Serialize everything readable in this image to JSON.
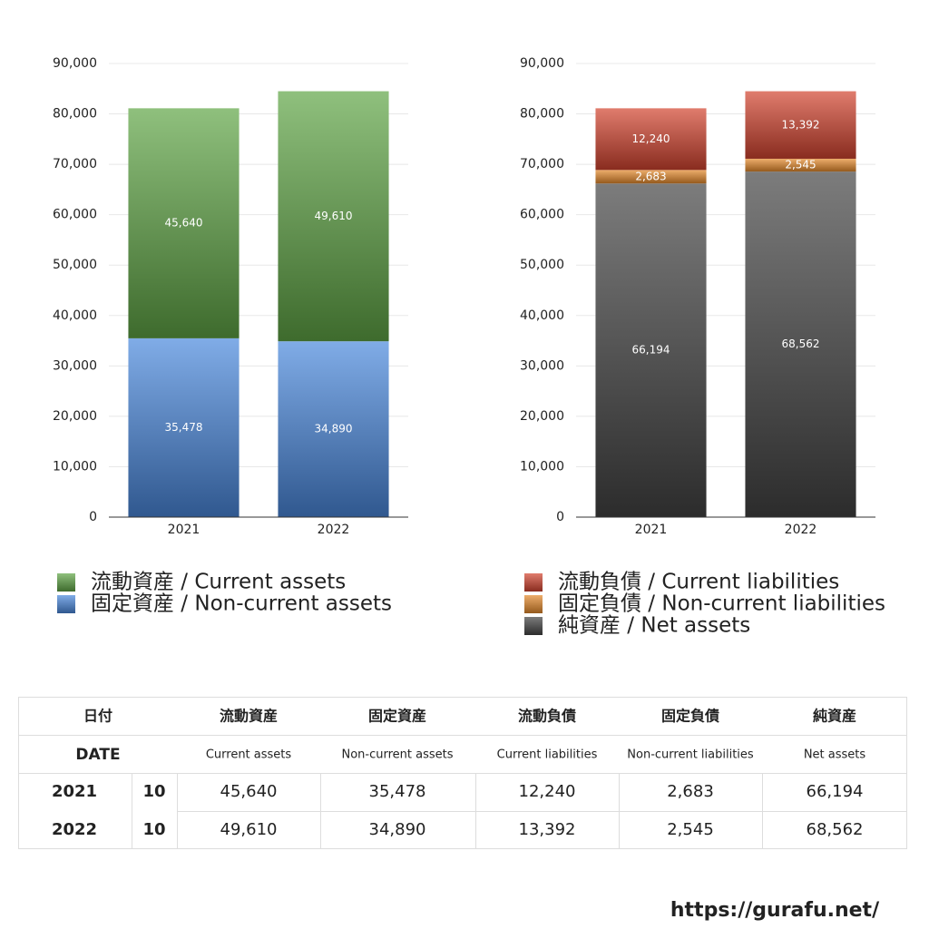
{
  "chart_data": [
    {
      "type": "bar",
      "stacked": true,
      "categories": [
        "2021",
        "2022"
      ],
      "series": [
        {
          "name": "流動資産 / Current assets",
          "color": "#5fa545",
          "values": [
            45640,
            49610
          ],
          "value_labels": [
            "45,640",
            "49,610"
          ]
        },
        {
          "name": "固定資産 / Non-current assets",
          "color": "#4a88dc",
          "values": [
            35478,
            34890
          ],
          "value_labels": [
            "35,478",
            "34,890"
          ]
        }
      ],
      "ylim": [
        0,
        90000
      ],
      "yticks": [
        0,
        {
          "value": 10000,
          "label": "10,000"
        },
        {
          "value": 20000,
          "label": "20,000"
        },
        {
          "value": 30000,
          "label": "30,000"
        },
        {
          "value": 40000,
          "label": "40,000"
        },
        {
          "value": 50000,
          "label": "50,000"
        },
        {
          "value": 60000,
          "label": "60,000"
        },
        {
          "value": 70000,
          "label": "70,000"
        },
        {
          "value": 80000,
          "label": "80,000"
        },
        {
          "value": 90000,
          "label": "90,000"
        }
      ],
      "grid": true,
      "legend": "bottom"
    },
    {
      "type": "bar",
      "stacked": true,
      "categories": [
        "2021",
        "2022"
      ],
      "series": [
        {
          "name": "流動負債 / Current liabilities",
          "color": "#d2442f",
          "values": [
            12240,
            13392
          ],
          "value_labels": [
            "12,240",
            "13,392"
          ]
        },
        {
          "name": "固定負債 / Non-current liabilities",
          "color": "#e58a2c",
          "values": [
            2683,
            2545
          ],
          "value_labels": [
            "2,683",
            "2,545"
          ]
        },
        {
          "name": "純資産 / Net assets",
          "color": "#444444",
          "values": [
            66194,
            68562
          ],
          "value_labels": [
            "66,194",
            "68,562"
          ]
        }
      ],
      "ylim": [
        0,
        90000
      ],
      "yticks": [
        0,
        {
          "value": 10000,
          "label": "10,000"
        },
        {
          "value": 20000,
          "label": "20,000"
        },
        {
          "value": 30000,
          "label": "30,000"
        },
        {
          "value": 40000,
          "label": "40,000"
        },
        {
          "value": 50000,
          "label": "50,000"
        },
        {
          "value": 60000,
          "label": "60,000"
        },
        {
          "value": 70000,
          "label": "70,000"
        },
        {
          "value": 80000,
          "label": "80,000"
        },
        {
          "value": 90000,
          "label": "90,000"
        }
      ],
      "grid": true,
      "legend": "bottom"
    }
  ],
  "table": {
    "header": {
      "date_ja": "日付",
      "date_en": "DATE",
      "columns_ja": [
        "流動資産",
        "固定資産",
        "流動負債",
        "固定負債",
        "純資産"
      ],
      "columns_en": [
        "Current assets",
        "Non-current assets",
        "Current liabilities",
        "Non-current liabilities",
        "Net assets"
      ]
    },
    "rows": [
      [
        "2021",
        "10",
        "45,640",
        "35,478",
        "12,240",
        "2,683",
        "66,194"
      ],
      [
        "2022",
        "10",
        "49,610",
        "34,890",
        "13,392",
        "2,545",
        "68,562"
      ]
    ]
  },
  "footer": "https://gurafu.net/"
}
